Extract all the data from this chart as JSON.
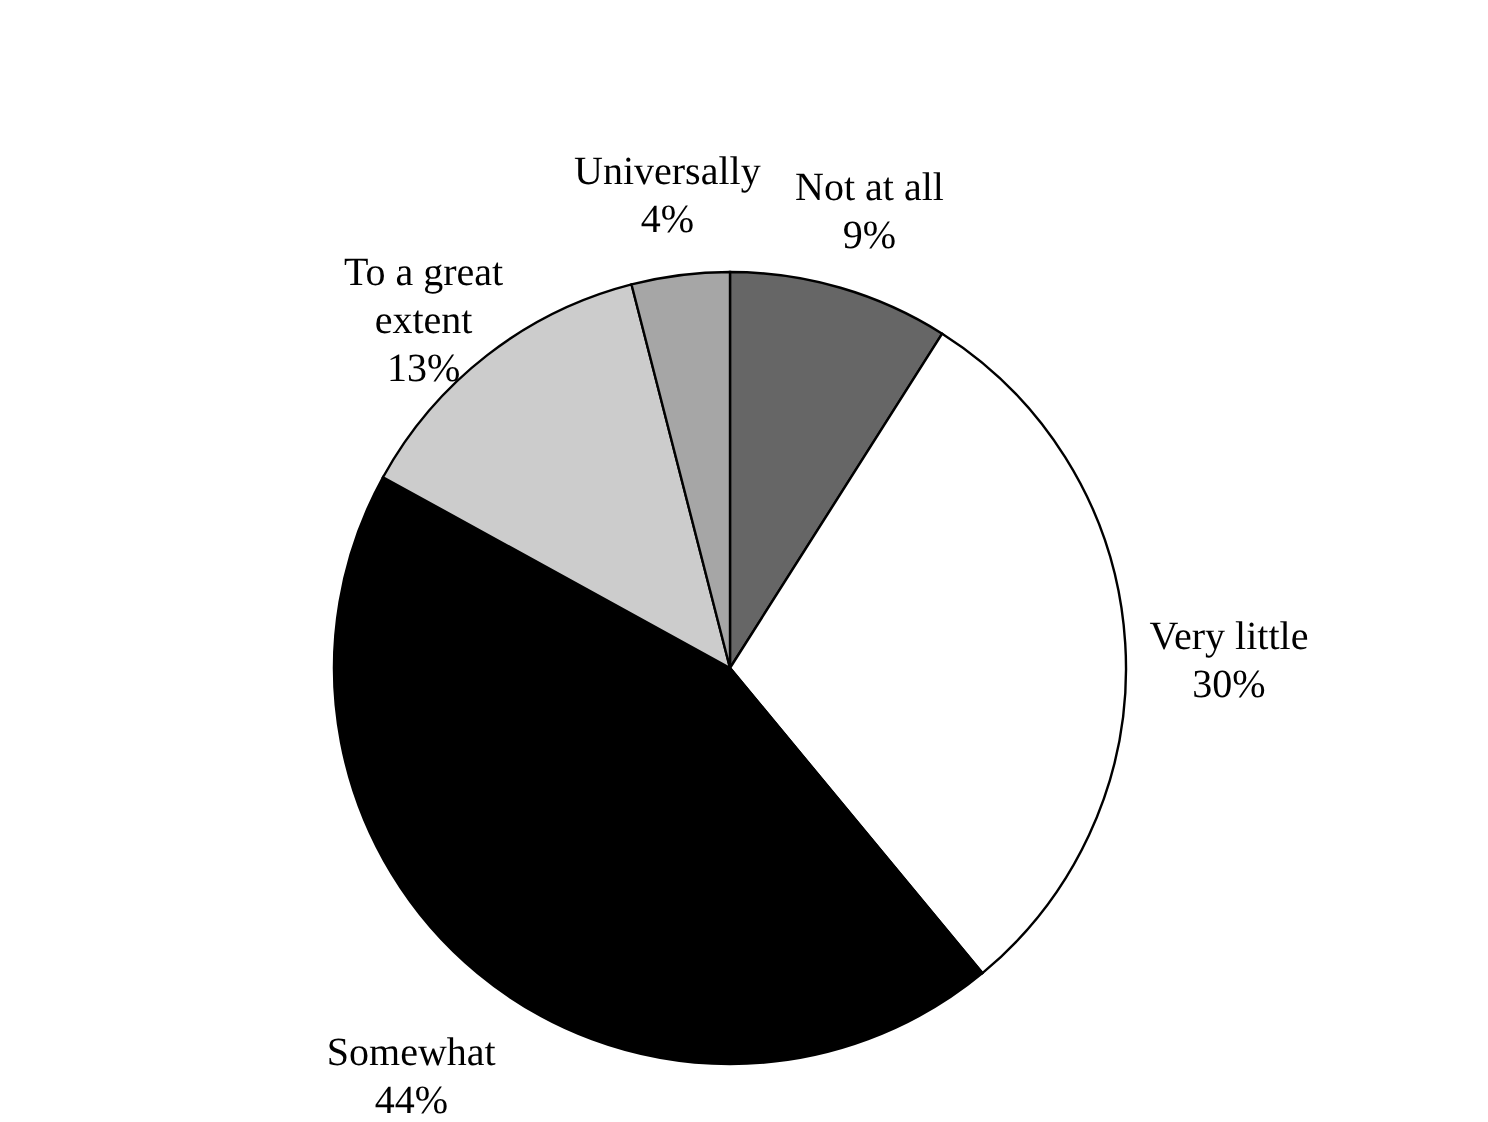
{
  "chart_data": {
    "type": "pie",
    "categories": [
      "Not at all",
      "Very little",
      "Somewhat",
      "To a great extent",
      "Universally"
    ],
    "values": [
      9,
      30,
      44,
      13,
      4
    ],
    "value_labels": [
      "9%",
      "30%",
      "44%",
      "13%",
      "4%"
    ],
    "colors": [
      "#666666",
      "#ffffff",
      "#000000",
      "#cccccc",
      "#a6a6a6"
    ]
  }
}
